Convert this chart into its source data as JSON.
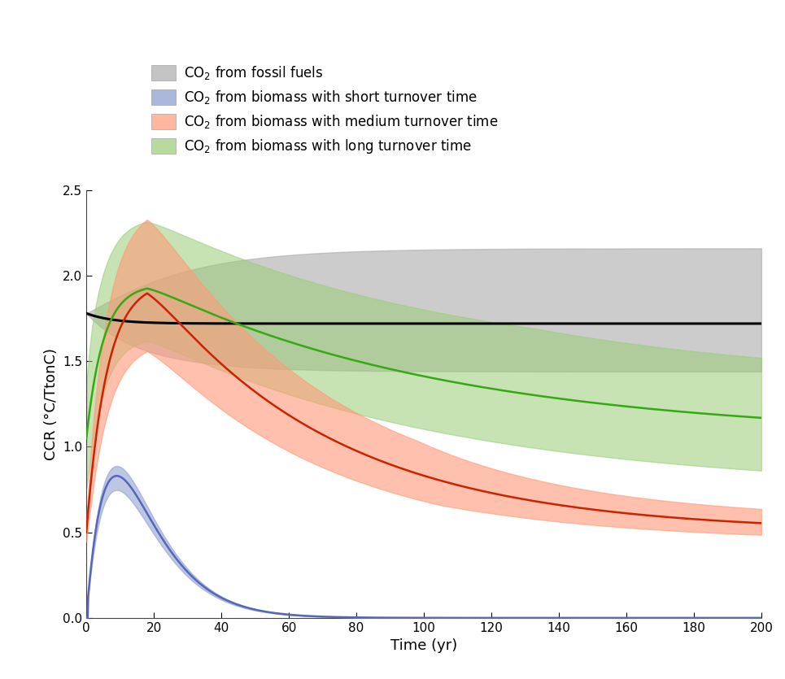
{
  "xlabel": "Time (yr)",
  "ylabel": "CCR (°C/TtonC)",
  "xlim": [
    0,
    200
  ],
  "ylim": [
    0.0,
    2.5
  ],
  "xticks": [
    0,
    20,
    40,
    60,
    80,
    100,
    120,
    140,
    160,
    180,
    200
  ],
  "yticks": [
    0.0,
    0.5,
    1.0,
    1.5,
    2.0,
    2.5
  ],
  "legend_labels": [
    "CO$_2$ from fossil fuels",
    "CO$_2$ from biomass with short turnover time",
    "CO$_2$ from biomass with medium turnover time",
    "CO$_2$ from biomass with long turnover time"
  ],
  "colors": {
    "fossil_fill": "#aaaaaa",
    "fossil_line": "#000000",
    "short_fill": "#8899cc",
    "short_line": "#5566bb",
    "medium_fill": "#ff9977",
    "medium_line": "#cc2200",
    "long_fill": "#99cc77",
    "long_line": "#33aa11"
  },
  "background": "#ffffff"
}
